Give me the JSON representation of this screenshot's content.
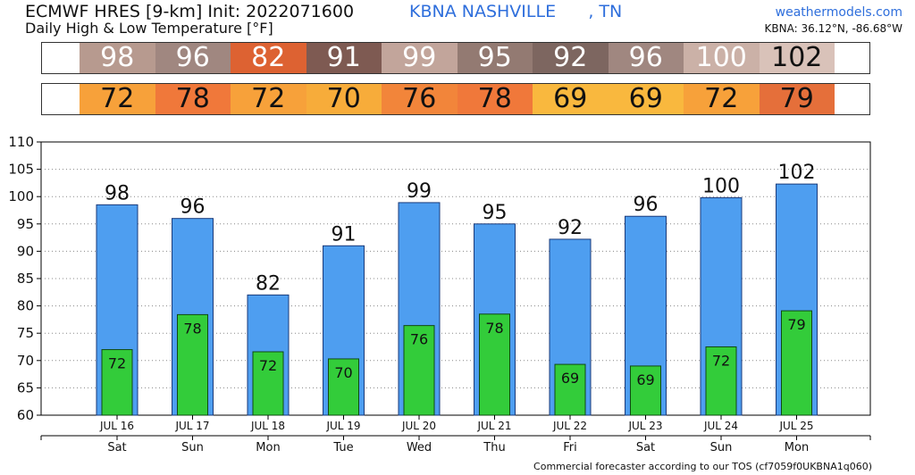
{
  "header": {
    "title": "ECMWF HRES [9-km] Init: 2022071600",
    "subtitle": "Daily High & Low Temperature [°F]",
    "location": "KBNA NASHVILLE      , TN",
    "site": "weathermodels.com",
    "coords": "KBNA: 36.12°N, -86.68°W"
  },
  "footer": "Commercial forecaster according to our TOS (cf7059f0UKBNA1q060)",
  "strips": {
    "high": [
      {
        "text": "98",
        "bg": "#b79a8f",
        "fg": "#ffffff"
      },
      {
        "text": "96",
        "bg": "#a08780",
        "fg": "#ffffff"
      },
      {
        "text": "82",
        "bg": "#dd6232",
        "fg": "#ffffff"
      },
      {
        "text": "91",
        "bg": "#7e5a52",
        "fg": "#ffffff"
      },
      {
        "text": "99",
        "bg": "#c2a59b",
        "fg": "#ffffff"
      },
      {
        "text": "95",
        "bg": "#937a72",
        "fg": "#ffffff"
      },
      {
        "text": "92",
        "bg": "#7d6660",
        "fg": "#ffffff"
      },
      {
        "text": "96",
        "bg": "#a08780",
        "fg": "#ffffff"
      },
      {
        "text": "100",
        "bg": "#cbb1a7",
        "fg": "#ffffff"
      },
      {
        "text": "102",
        "bg": "#d9c2b9",
        "fg": "#111111"
      }
    ],
    "low": [
      {
        "text": "72",
        "bg": "#f7a13a",
        "fg": "#111111"
      },
      {
        "text": "78",
        "bg": "#f0783a",
        "fg": "#111111"
      },
      {
        "text": "72",
        "bg": "#f7a13a",
        "fg": "#111111"
      },
      {
        "text": "70",
        "bg": "#f7ac3a",
        "fg": "#111111"
      },
      {
        "text": "76",
        "bg": "#f2853a",
        "fg": "#111111"
      },
      {
        "text": "78",
        "bg": "#f0783a",
        "fg": "#111111"
      },
      {
        "text": "69",
        "bg": "#f9b83e",
        "fg": "#111111"
      },
      {
        "text": "69",
        "bg": "#f9b83e",
        "fg": "#111111"
      },
      {
        "text": "72",
        "bg": "#f7a13a",
        "fg": "#111111"
      },
      {
        "text": "79",
        "bg": "#e56f3a",
        "fg": "#111111"
      }
    ]
  },
  "chart_data": {
    "type": "bar",
    "categories": [
      "JUL 16",
      "JUL 17",
      "JUL 18",
      "JUL 19",
      "JUL 20",
      "JUL 21",
      "JUL 22",
      "JUL 23",
      "JUL 24",
      "JUL 25"
    ],
    "days": [
      "Sat",
      "Sun",
      "Mon",
      "Tue",
      "Wed",
      "Thu",
      "Fri",
      "Sat",
      "Sun",
      "Mon"
    ],
    "series": [
      {
        "key": "high",
        "values": [
          98.5,
          96,
          82,
          91,
          98.9,
          95,
          92.2,
          96.4,
          99.8,
          102.3
        ],
        "labels": [
          "98",
          "96",
          "82",
          "91",
          "99",
          "95",
          "92",
          "96",
          "100",
          "102"
        ],
        "color": "#4e9ef0"
      },
      {
        "key": "low",
        "values": [
          72,
          78.4,
          71.6,
          70.3,
          76.4,
          78.5,
          69.3,
          69,
          72.5,
          79.1
        ],
        "labels": [
          "72",
          "78",
          "72",
          "70",
          "76",
          "78",
          "69",
          "69",
          "72",
          "79"
        ],
        "color": "#33cc3a"
      }
    ],
    "ylim": [
      60,
      110
    ],
    "yticks": [
      60,
      65,
      70,
      75,
      80,
      85,
      90,
      95,
      100,
      105,
      110
    ],
    "grid": true
  }
}
